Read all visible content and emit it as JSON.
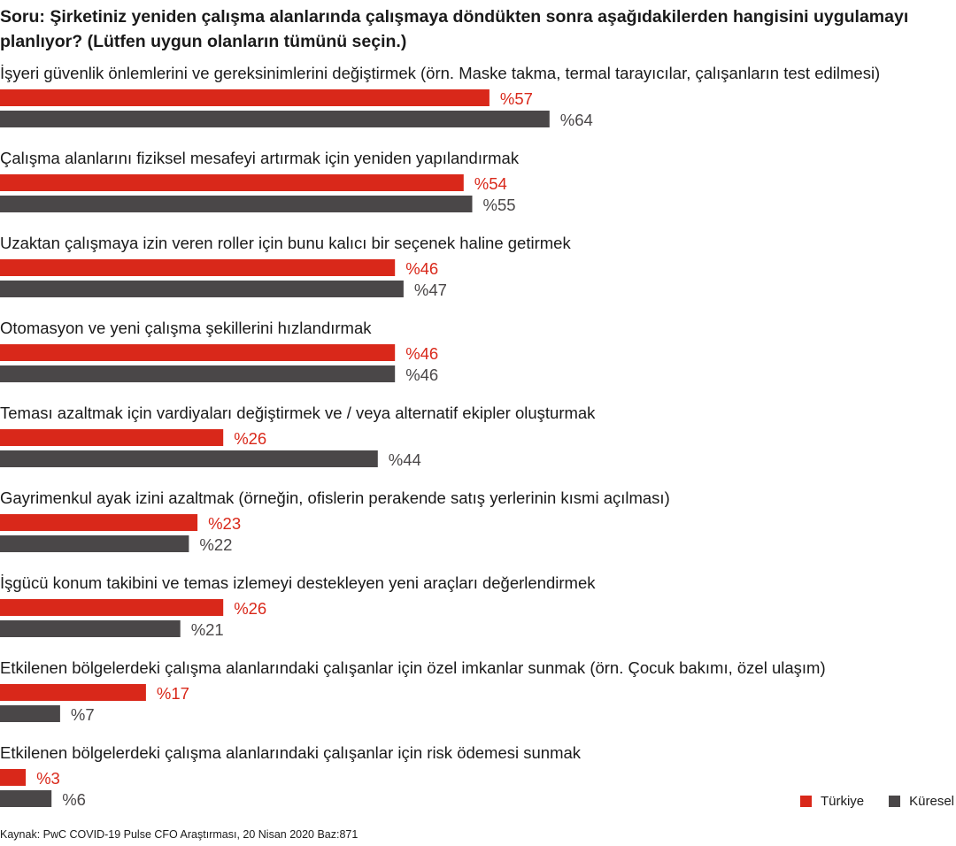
{
  "title": "Soru: Şirketiniz yeniden çalışma alanlarında çalışmaya döndükten sonra aşağıdakilerden hangisini uygulamayı planlıyor? (Lütfen uygun olanların tümünü seçin.)",
  "source": "Kaynak: PwC COVID-19 Pulse CFO Araştırması, 20 Nisan 2020 Baz:871",
  "colors": {
    "turkiye": "#d9281a",
    "kuresel": "#4a4748"
  },
  "chart_data": {
    "type": "bar",
    "orientation": "horizontal",
    "value_prefix": "%",
    "xlim": [
      0,
      100
    ],
    "categories": [
      "İşyeri güvenlik önlemlerini ve gereksinimlerini değiştirmek (örn. Maske takma, termal tarayıcılar, çalışanların test edilmesi)",
      "Çalışma alanlarını fiziksel mesafeyi artırmak için yeniden yapılandırmak",
      "Uzaktan çalışmaya izin veren roller için bunu kalıcı bir seçenek haline getirmek",
      "Otomasyon ve yeni çalışma şekillerini hızlandırmak",
      "Teması azaltmak için vardiyaları değiştirmek ve / veya alternatif ekipler oluşturmak",
      "Gayrimenkul ayak izini azaltmak (örneğin, ofislerin perakende satış yerlerinin kısmi açılması)",
      "İşgücü konum takibini ve temas izlemeyi destekleyen yeni araçları değerlendirmek",
      "Etkilenen bölgelerdeki çalışma alanlarındaki çalışanlar için özel imkanlar sunmak (örn. Çocuk bakımı, özel ulaşım)",
      "Etkilenen bölgelerdeki çalışma alanlarındaki çalışanlar için risk ödemesi sunmak"
    ],
    "series": [
      {
        "name": "Türkiye",
        "color": "#d9281a",
        "values": [
          57,
          54,
          46,
          46,
          26,
          23,
          26,
          17,
          3
        ]
      },
      {
        "name": "Küresel",
        "color": "#4a4748",
        "values": [
          64,
          55,
          47,
          46,
          44,
          22,
          21,
          7,
          6
        ]
      }
    ],
    "legend": "bottom-right",
    "grid": false
  }
}
